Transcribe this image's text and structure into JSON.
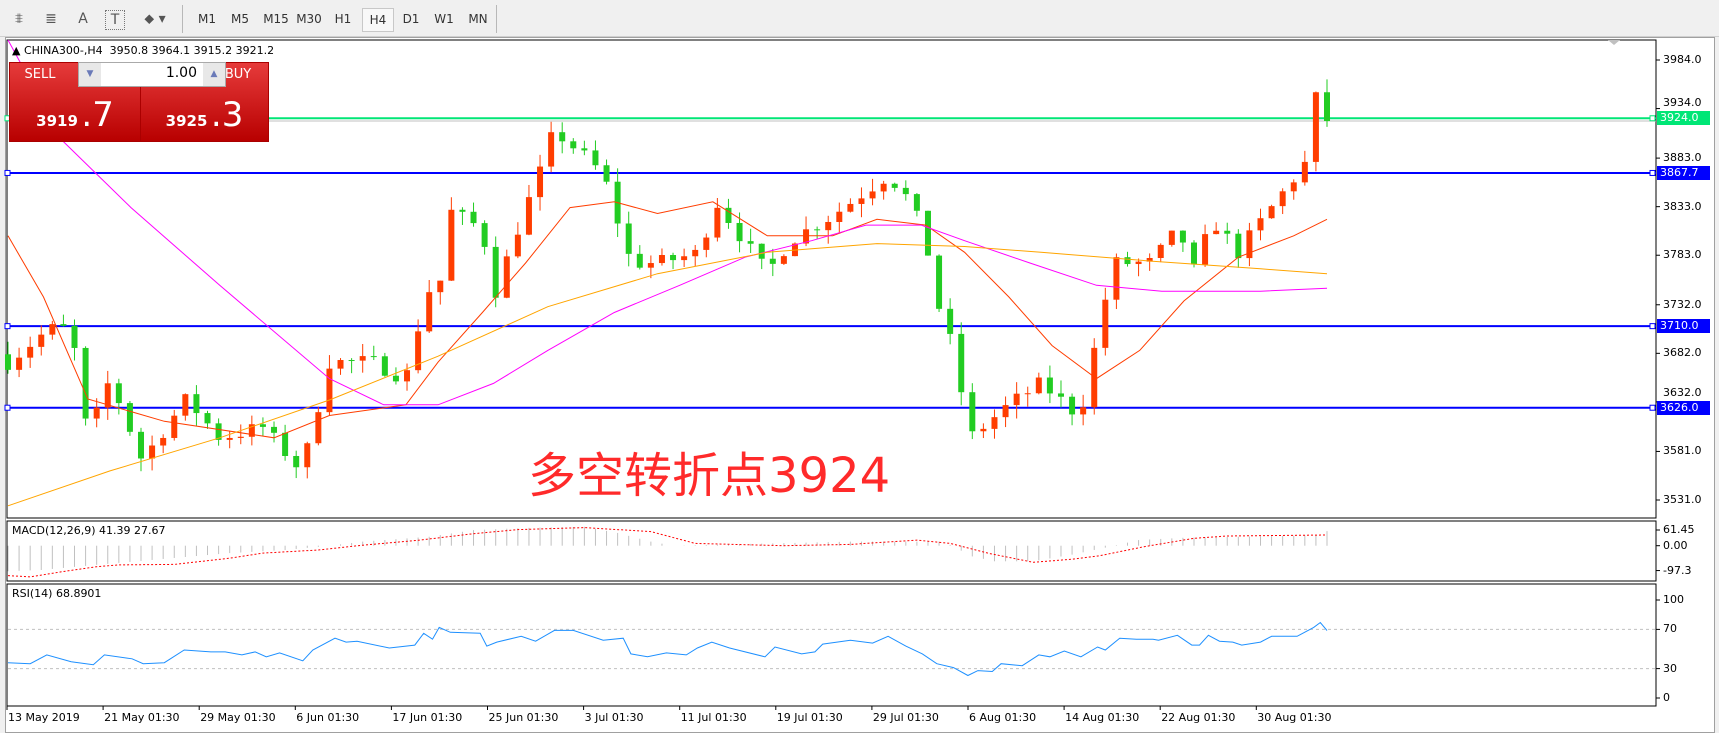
{
  "toolbar": {
    "icons": [
      "elliott-wave-icon",
      "fibonacci-icon",
      "text-icon",
      "text-label-icon",
      "arrows-icon"
    ],
    "icon_glyphs": [
      "⩨",
      "≣",
      "A",
      "T",
      "⬥"
    ],
    "periods": [
      "M1",
      "M5",
      "M15",
      "M30",
      "H1",
      "H4",
      "D1",
      "W1",
      "MN"
    ],
    "selected_period": "H4"
  },
  "chart": {
    "symbol_header": "CHINA300-,H4  3950.8 3964.1 3915.2 3921.2",
    "overlay_text": "多空转折点3924",
    "trade_panel": {
      "sell_label": "SELL",
      "buy_label": "BUY",
      "lot": "1.00",
      "sell_main": "3919",
      "sell_frac": ".7",
      "buy_main": "3925",
      "buy_frac": ".3"
    },
    "colors": {
      "up_candle": "#ff3d00",
      "down_candle": "#22cc22",
      "ma_fast": "#ff3d00",
      "ma_mid": "#ff00ff",
      "ma_slow": "#ffa500",
      "hline": "#0000ff",
      "hline_green": "#00e676",
      "rsi": "#1e90ff",
      "macd_signal": "#ff0000",
      "macd_hist": "#c0c0c0"
    }
  },
  "chart_data": {
    "type": "candlestick",
    "price_axis": {
      "ticks": [
        "3984.0",
        "3934.0",
        "3883.0",
        "3833.0",
        "3783.0",
        "3732.0",
        "3682.0",
        "3632.0",
        "3581.0",
        "3531.0"
      ],
      "range": [
        3511,
        3996
      ]
    },
    "horizontal_lines": [
      {
        "price": 3924.0,
        "label": "3924.0",
        "color": "#00e676"
      },
      {
        "price": 3867.7,
        "label": "3867.7",
        "color": "#0000ff"
      },
      {
        "price": 3710.0,
        "label": "3710.0",
        "color": "#0000ff"
      },
      {
        "price": 3626.0,
        "label": "3626.0",
        "color": "#0000ff"
      }
    ],
    "bar_count": 120,
    "close_keyframes": [
      [
        0,
        3673
      ],
      [
        3.7,
        3707
      ],
      [
        5.7,
        3707
      ],
      [
        7.2,
        3595
      ],
      [
        9.2,
        3656
      ],
      [
        12.1,
        3572
      ],
      [
        16.1,
        3635
      ],
      [
        19.1,
        3595
      ],
      [
        23,
        3606
      ],
      [
        26.5,
        3561
      ],
      [
        29,
        3673
      ],
      [
        32.9,
        3673
      ],
      [
        35.9,
        3656
      ],
      [
        37.9,
        3752
      ],
      [
        38.8,
        3707
      ],
      [
        39.3,
        3832
      ],
      [
        42.8,
        3810
      ],
      [
        43.8,
        3740
      ],
      [
        46.3,
        3820
      ],
      [
        48.7,
        3888
      ],
      [
        49.2,
        3912
      ],
      [
        51.7,
        3888
      ],
      [
        53.7,
        3866
      ],
      [
        56.2,
        3775
      ],
      [
        58.6,
        3775
      ],
      [
        62.6,
        3786
      ],
      [
        63.6,
        3843
      ],
      [
        68.5,
        3764
      ],
      [
        70.5,
        3798
      ],
      [
        74.4,
        3824
      ],
      [
        79.4,
        3866
      ],
      [
        81.4,
        3838
      ],
      [
        82.8,
        3798
      ],
      [
        83.8,
        3736
      ],
      [
        85.3,
        3685
      ],
      [
        86.8,
        3595
      ],
      [
        90.3,
        3629
      ],
      [
        93.2,
        3651
      ],
      [
        96.7,
        3617
      ],
      [
        98.2,
        3696
      ],
      [
        99.7,
        3775
      ],
      [
        103.1,
        3775
      ],
      [
        105.6,
        3810
      ],
      [
        107.1,
        3764
      ],
      [
        108.6,
        3820
      ],
      [
        111,
        3786
      ],
      [
        114,
        3832
      ],
      [
        117,
        3877
      ],
      [
        118,
        3910
      ],
      [
        119,
        3921.2
      ]
    ],
    "last_bar": {
      "open": 3950.8,
      "high": 3964.1,
      "low": 3915.2,
      "close": 3921.2
    },
    "moving_averages": [
      {
        "color": "#ff3d00",
        "points": [
          [
            0,
            3803
          ],
          [
            3.2,
            3740
          ],
          [
            7.2,
            3635
          ],
          [
            14.1,
            3612
          ],
          [
            24,
            3595
          ],
          [
            29,
            3618
          ],
          [
            35.9,
            3629
          ],
          [
            38.8,
            3673
          ],
          [
            42.8,
            3724
          ],
          [
            46.7,
            3775
          ],
          [
            50.7,
            3832
          ],
          [
            54.7,
            3838
          ],
          [
            58.6,
            3826
          ],
          [
            63.6,
            3838
          ],
          [
            68.5,
            3803
          ],
          [
            74.4,
            3803
          ],
          [
            78.4,
            3820
          ],
          [
            82.8,
            3814
          ],
          [
            86.3,
            3786
          ],
          [
            90.3,
            3740
          ],
          [
            94.2,
            3690
          ],
          [
            98.2,
            3656
          ],
          [
            102.1,
            3685
          ],
          [
            106.1,
            3736
          ],
          [
            111,
            3781
          ],
          [
            116,
            3803
          ],
          [
            119,
            3820
          ]
        ]
      },
      {
        "color": "#ff00ff",
        "points": [
          [
            5,
            3900
          ],
          [
            11.1,
            3832
          ],
          [
            19.1,
            3752
          ],
          [
            29,
            3656
          ],
          [
            33.9,
            3629
          ],
          [
            38.8,
            3629
          ],
          [
            43.8,
            3651
          ],
          [
            48.7,
            3685
          ],
          [
            54.7,
            3724
          ],
          [
            60.6,
            3752
          ],
          [
            66.5,
            3781
          ],
          [
            72.5,
            3798
          ],
          [
            77.4,
            3814
          ],
          [
            82.4,
            3814
          ],
          [
            86.3,
            3798
          ],
          [
            92.2,
            3775
          ],
          [
            98.2,
            3752
          ],
          [
            104.1,
            3746
          ],
          [
            113,
            3746
          ],
          [
            119,
            3749
          ]
        ]
      },
      {
        "color": "#ffa500",
        "points": [
          [
            0,
            3525
          ],
          [
            9.2,
            3561
          ],
          [
            19.1,
            3595
          ],
          [
            29,
            3634
          ],
          [
            38.8,
            3679
          ],
          [
            48.7,
            3730
          ],
          [
            58.6,
            3764
          ],
          [
            68.5,
            3786
          ],
          [
            78.4,
            3795
          ],
          [
            86.3,
            3792
          ],
          [
            93.2,
            3786
          ],
          [
            103.1,
            3777
          ],
          [
            113,
            3769
          ],
          [
            119,
            3764
          ]
        ]
      }
    ],
    "macd": {
      "label": "MACD(12,26,9) 41.39 27.67",
      "ticks": [
        "61.45",
        "0.00",
        "-97.3"
      ],
      "histogram": [
        [
          0,
          -100
        ],
        [
          3,
          -95
        ],
        [
          8,
          -75
        ],
        [
          15,
          -48
        ],
        [
          20,
          -29
        ],
        [
          25,
          -17
        ],
        [
          29,
          0
        ],
        [
          32,
          16
        ],
        [
          38,
          35
        ],
        [
          42,
          61
        ],
        [
          47,
          70
        ],
        [
          52,
          74
        ],
        [
          55,
          50
        ],
        [
          58,
          16
        ],
        [
          60,
          0
        ],
        [
          70,
          10
        ],
        [
          76,
          16
        ],
        [
          84,
          16
        ],
        [
          85,
          3
        ],
        [
          87,
          -42
        ],
        [
          89,
          -61
        ],
        [
          92.5,
          -61
        ],
        [
          96,
          -35
        ],
        [
          99.5,
          -3
        ],
        [
          102,
          22
        ],
        [
          106,
          31
        ],
        [
          111,
          35
        ],
        [
          118,
          41
        ],
        [
          119,
          57
        ]
      ],
      "signal": [
        [
          0,
          -117
        ],
        [
          2,
          -122
        ],
        [
          5,
          -101
        ],
        [
          8,
          -82
        ],
        [
          10,
          -75
        ],
        [
          15,
          -73
        ],
        [
          20,
          -49
        ],
        [
          23,
          -29
        ],
        [
          28,
          -17
        ],
        [
          32,
          2
        ],
        [
          37,
          21
        ],
        [
          42,
          47
        ],
        [
          46,
          63
        ],
        [
          52,
          71
        ],
        [
          58,
          55
        ],
        [
          62,
          9
        ],
        [
          70,
          0
        ],
        [
          76,
          5
        ],
        [
          82,
          22
        ],
        [
          85,
          9
        ],
        [
          88.5,
          -30
        ],
        [
          92.5,
          -65
        ],
        [
          96,
          -53
        ],
        [
          98.5,
          -39
        ],
        [
          102.5,
          -4
        ],
        [
          107,
          29
        ],
        [
          110,
          38
        ],
        [
          119,
          42
        ]
      ]
    },
    "rsi": {
      "label": "RSI(14) 68.8901",
      "ticks": [
        "100",
        "70",
        "30",
        "0"
      ],
      "levels": [
        70,
        30
      ],
      "points": [
        [
          0,
          36
        ],
        [
          2,
          35
        ],
        [
          3.5,
          44
        ],
        [
          5.7,
          37
        ],
        [
          7.7,
          34
        ],
        [
          8.7,
          44
        ],
        [
          11.2,
          40
        ],
        [
          12.2,
          35
        ],
        [
          14.1,
          36
        ],
        [
          15.9,
          49
        ],
        [
          18.3,
          47
        ],
        [
          19.6,
          47
        ],
        [
          21.1,
          44
        ],
        [
          22.3,
          47
        ],
        [
          23.3,
          42
        ],
        [
          24.5,
          46
        ],
        [
          26.6,
          38
        ],
        [
          27.5,
          49
        ],
        [
          29.5,
          61
        ],
        [
          30.5,
          57
        ],
        [
          31.5,
          58
        ],
        [
          34.4,
          51
        ],
        [
          36.7,
          54
        ],
        [
          37.5,
          66
        ],
        [
          38.3,
          60
        ],
        [
          38.9,
          72
        ],
        [
          39.9,
          67
        ],
        [
          42.6,
          66
        ],
        [
          43.2,
          53
        ],
        [
          44.1,
          57
        ],
        [
          46.3,
          63
        ],
        [
          47.6,
          58
        ],
        [
          49.3,
          69
        ],
        [
          51,
          69
        ],
        [
          53.7,
          59
        ],
        [
          55.5,
          61
        ],
        [
          56.2,
          45
        ],
        [
          57.7,
          42
        ],
        [
          59.4,
          46
        ],
        [
          61.2,
          44
        ],
        [
          62.2,
          51
        ],
        [
          63.5,
          57
        ],
        [
          65.1,
          51
        ],
        [
          68.3,
          42
        ],
        [
          69.2,
          52
        ],
        [
          71.6,
          45
        ],
        [
          72.8,
          47
        ],
        [
          73.5,
          55
        ],
        [
          76,
          59
        ],
        [
          78,
          56
        ],
        [
          79.4,
          63
        ],
        [
          81,
          53
        ],
        [
          82.5,
          45
        ],
        [
          83.8,
          35
        ],
        [
          85.3,
          31
        ],
        [
          86.6,
          23
        ],
        [
          87.5,
          28
        ],
        [
          88.8,
          27
        ],
        [
          89.6,
          35
        ],
        [
          91.5,
          33
        ],
        [
          93,
          44
        ],
        [
          94,
          42
        ],
        [
          95.3,
          48
        ],
        [
          96.8,
          42
        ],
        [
          98.3,
          52
        ],
        [
          99,
          49
        ],
        [
          100.3,
          61
        ],
        [
          101.8,
          60
        ],
        [
          103.3,
          60
        ],
        [
          103.8,
          59
        ],
        [
          105.5,
          64
        ],
        [
          106.8,
          54
        ],
        [
          107.5,
          54
        ],
        [
          108.3,
          64
        ],
        [
          109.3,
          58
        ],
        [
          110.5,
          57
        ],
        [
          111.3,
          54
        ],
        [
          113,
          57
        ],
        [
          114,
          63
        ],
        [
          116.3,
          63
        ],
        [
          117.8,
          72
        ],
        [
          118.4,
          77
        ],
        [
          119,
          68.9
        ]
      ]
    },
    "time_axis": {
      "labels": [
        "13 May 2019",
        "21 May 01:30",
        "29 May 01:30",
        "6 Jun 01:30",
        "17 Jun 01:30",
        "25 Jun 01:30",
        "3 Jul 01:30",
        "11 Jul 01:30",
        "19 Jul 01:30",
        "29 Jul 01:30",
        "6 Aug 01:30",
        "14 Aug 01:30",
        "22 Aug 01:30",
        "30 Aug 01:30"
      ]
    }
  }
}
